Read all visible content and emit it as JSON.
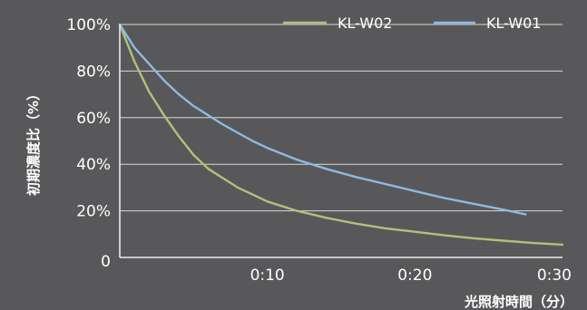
{
  "chart_data": {
    "type": "line",
    "xlabel": "光照射時間（分）",
    "ylabel": "初期濃度比（%）",
    "xlim": [
      0,
      30
    ],
    "ylim": [
      0,
      100
    ],
    "x_ticks": [
      {
        "value": 10,
        "label": "0:10"
      },
      {
        "value": 20,
        "label": "0:20"
      },
      {
        "value": 30,
        "label": "0:30"
      }
    ],
    "y_ticks": [
      {
        "value": 0,
        "label": "0"
      },
      {
        "value": 20,
        "label": "20%"
      },
      {
        "value": 40,
        "label": "40%"
      },
      {
        "value": 60,
        "label": "60%"
      },
      {
        "value": 80,
        "label": "80%"
      },
      {
        "value": 100,
        "label": "100%"
      }
    ],
    "grid": "horizontal",
    "legend_position": "top-right",
    "series": [
      {
        "name": "KL-W02",
        "color": "#b3c07a",
        "x": [
          0,
          1,
          2,
          3,
          4,
          5,
          6,
          7,
          8,
          9,
          10,
          12,
          14,
          16,
          18,
          20,
          22,
          24,
          26,
          28,
          30
        ],
        "y": [
          100,
          84,
          71,
          61,
          52,
          44,
          38,
          34,
          30,
          27,
          24,
          20,
          17,
          14.5,
          12.5,
          11,
          9.5,
          8.2,
          7.2,
          6.2,
          5.5
        ]
      },
      {
        "name": "KL-W01",
        "color": "#8eb9e0",
        "x": [
          0,
          1,
          2,
          3,
          4,
          5,
          6,
          7,
          8,
          9,
          10,
          12,
          14,
          16,
          18,
          20,
          22,
          24,
          26,
          27.5
        ],
        "y": [
          100,
          90,
          83,
          76,
          70,
          65,
          61,
          57,
          53.5,
          50,
          47,
          42,
          38,
          34.5,
          31.5,
          28.5,
          25.5,
          23,
          20.5,
          18.5
        ]
      }
    ]
  }
}
